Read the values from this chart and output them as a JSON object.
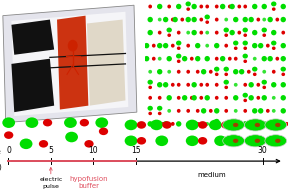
{
  "fig_width": 2.88,
  "fig_height": 1.89,
  "dpi": 100,
  "bg_color": "#ffffff",
  "time_points": [
    0,
    5,
    10,
    15,
    30
  ],
  "time_labels": [
    "0",
    "5",
    "10",
    "15",
    "30"
  ],
  "electric_pulse_label": "electric\npulse",
  "hypofusion_label": "hypofusion\nbuffer",
  "medium_label": "medium",
  "timeline_color": "#e05060",
  "text_color_black": "#111111",
  "text_color_red": "#e05060",
  "green_color": "#00dd00",
  "red_color": "#dd0000",
  "dot_grid_bg": "#000000",
  "panel_bg": "#000000",
  "chip_bg": "#cccccc",
  "chip_body": "#e8e8f0",
  "chip_edge": "#999999"
}
